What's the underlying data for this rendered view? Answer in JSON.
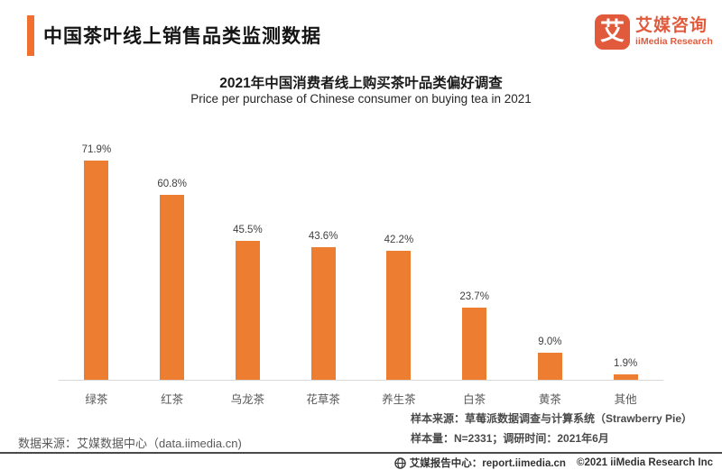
{
  "header": {
    "title": "中国茶叶线上销售品类监测数据",
    "logo": {
      "glyph": "艾",
      "name_cn": "艾媒咨询",
      "name_en": "iiMedia Research"
    }
  },
  "chart_data": {
    "type": "bar",
    "title": "2021年中国消费者线上购买茶叶品类偏好调查",
    "subtitle": "Price per purchase of Chinese consumer on buying tea in 2021",
    "categories": [
      "绿茶",
      "红茶",
      "乌龙茶",
      "花草茶",
      "养生茶",
      "白茶",
      "黄茶",
      "其他"
    ],
    "values": [
      71.9,
      60.8,
      45.5,
      43.6,
      42.2,
      23.7,
      9.0,
      1.9
    ],
    "value_labels": [
      "71.9%",
      "60.8%",
      "45.5%",
      "43.6%",
      "42.2%",
      "23.7%",
      "9.0%",
      "1.9%"
    ],
    "xlabel": "",
    "ylabel": "",
    "ylim": [
      0,
      80
    ],
    "grid": false,
    "legend": "none",
    "bar_color": "#ED7D31"
  },
  "notes": {
    "sample_source": "样本来源：草莓派数据调查与计算系统（Strawberry Pie）",
    "sample_size": "样本量：N=2331；调研时间：2021年6月",
    "data_source": "数据来源：艾媒数据中心（data.iimedia.cn)"
  },
  "footer": {
    "report_center": "艾媒报告中心：report.iimedia.cn",
    "copyright": "©2021  iiMedia Research Inc"
  },
  "colors": {
    "accent_orange": "#F2702F",
    "bar_orange": "#ED7D31",
    "brand_red": "#E15A3C",
    "axis_gray": "#D9D9D9"
  }
}
